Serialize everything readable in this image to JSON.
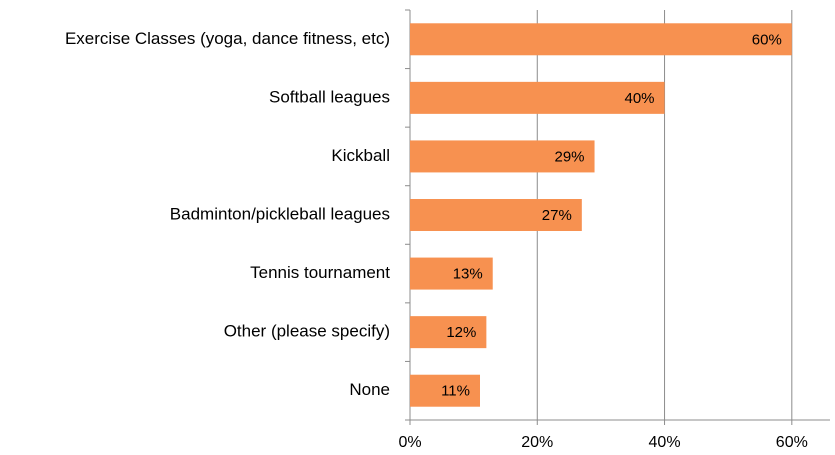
{
  "chart_data": {
    "type": "bar",
    "orientation": "horizontal",
    "categories": [
      "Exercise Classes (yoga, dance fitness, etc)",
      "Softball leagues",
      "Kickball",
      "Badminton/pickleball leagues",
      "Tennis tournament",
      "Other (please specify)",
      "None"
    ],
    "values": [
      60,
      40,
      29,
      27,
      13,
      12,
      11
    ],
    "value_labels": [
      "60%",
      "40%",
      "29%",
      "27%",
      "13%",
      "12%",
      "11%"
    ],
    "color": "#f79150",
    "xlim": [
      0,
      66
    ],
    "xticks": [
      {
        "value": 0,
        "label": "0%"
      },
      {
        "value": 20,
        "label": "20%"
      },
      {
        "value": 40,
        "label": "40%"
      },
      {
        "value": 60,
        "label": "60%"
      }
    ],
    "grid": true
  }
}
